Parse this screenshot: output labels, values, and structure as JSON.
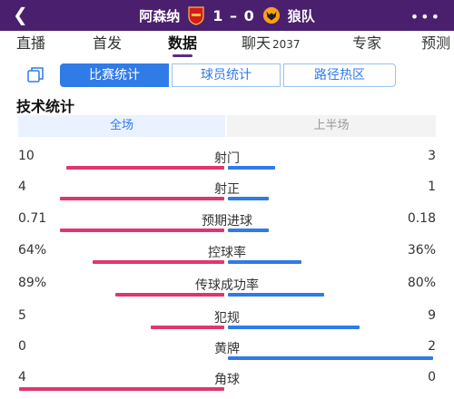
{
  "header": {
    "home_team": "阿森纳",
    "away_team": "狼队",
    "score": "1 – 0",
    "back_icon": "back-arrow-icon",
    "more_icon": "more-dots-icon",
    "color": "#4a1f6e"
  },
  "tabs": [
    {
      "label": "直播"
    },
    {
      "label": "首发"
    },
    {
      "label": "数据"
    },
    {
      "label": "聊天",
      "count": "2037"
    },
    {
      "label": "专家"
    },
    {
      "label": "预测"
    }
  ],
  "active_tab": "数据",
  "segments": [
    "比赛统计",
    "球员统计",
    "路径热区"
  ],
  "active_segment": "比赛统计",
  "section_title": "技术统计",
  "halves": [
    "全场",
    "上半场"
  ],
  "colors": {
    "home": "#e0366c",
    "away": "#2f7be8",
    "accent": "#2f7be8"
  },
  "stats": [
    {
      "name": "射门",
      "home": "10",
      "away": "3",
      "home_share": 0.769,
      "away_share": 0.231
    },
    {
      "name": "射正",
      "home": "4",
      "away": "1",
      "home_share": 0.8,
      "away_share": 0.2
    },
    {
      "name": "预期进球",
      "home": "0.71",
      "away": "0.18",
      "home_share": 0.8,
      "away_share": 0.2
    },
    {
      "name": "控球率",
      "home": "64%",
      "away": "36%",
      "home_share": 0.64,
      "away_share": 0.36
    },
    {
      "name": "传球成功率",
      "home": "89%",
      "away": "80%",
      "home_share": 0.53,
      "away_share": 0.47
    },
    {
      "name": "犯规",
      "home": "5",
      "away": "9",
      "home_share": 0.357,
      "away_share": 0.643
    },
    {
      "name": "黄牌",
      "home": "0",
      "away": "2",
      "home_share": 0.0,
      "away_share": 1.0
    },
    {
      "name": "角球",
      "home": "4",
      "away": "0",
      "home_share": 1.0,
      "away_share": 0.0
    }
  ]
}
